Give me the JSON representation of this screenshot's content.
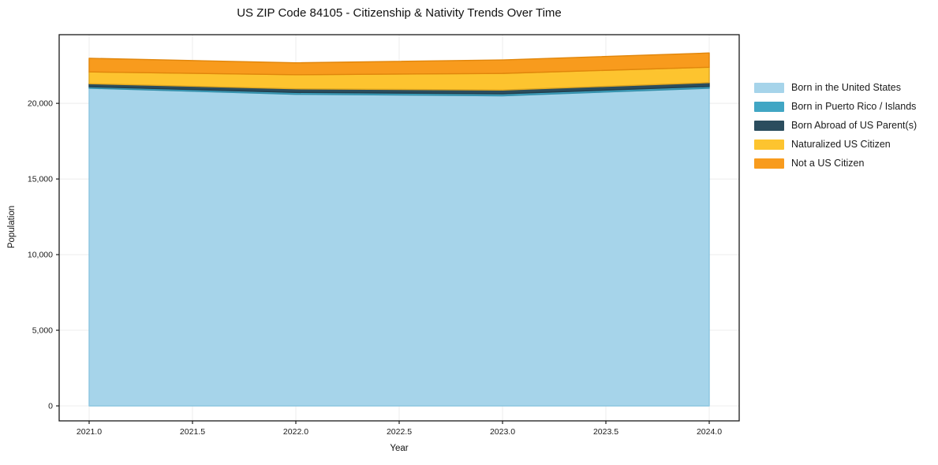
{
  "title": "US ZIP Code 84105 - Citizenship & Nativity Trends Over Time",
  "chart_data": {
    "type": "area",
    "stacked": true,
    "title": "US ZIP Code 84105 - Citizenship & Nativity Trends Over Time",
    "xlabel": "Year",
    "ylabel": "Population",
    "x": [
      2021,
      2022,
      2023,
      2024
    ],
    "series": [
      {
        "name": "Born in the United States",
        "values": [
          21000,
          20600,
          20500,
          21000
        ],
        "color": "#A6D4EA",
        "edge": "#8CC6E0"
      },
      {
        "name": "Born in Puerto Rico / Islands",
        "values": [
          100,
          120,
          130,
          120
        ],
        "color": "#41A6C4",
        "edge": "#348EA9"
      },
      {
        "name": "Born Abroad of US Parent(s)",
        "values": [
          200,
          240,
          250,
          250
        ],
        "color": "#2B4D5E",
        "edge": "#223E4C"
      },
      {
        "name": "Naturalized US Citizen",
        "values": [
          780,
          930,
          1100,
          1020
        ],
        "color": "#FDC42F",
        "edge": "#DFA620"
      },
      {
        "name": "Not a US Citizen",
        "values": [
          900,
          790,
          890,
          940
        ],
        "color": "#F89B1D",
        "edge": "#E1860B"
      }
    ],
    "x_tick_values": [
      2021.0,
      2021.5,
      2022.0,
      2022.5,
      2023.0,
      2023.5,
      2024.0
    ],
    "x_tick_labels": [
      "2021.0",
      "2021.5",
      "2022.0",
      "2022.5",
      "2023.0",
      "2023.5",
      "2024.0"
    ],
    "y_tick_values": [
      0,
      5000,
      10000,
      15000,
      20000
    ],
    "y_tick_labels": [
      "0",
      "5,000",
      "10,000",
      "15,000",
      "20,000"
    ],
    "x_range": [
      2020.855,
      2024.145
    ],
    "y_range": [
      -990,
      24540
    ],
    "grid": true,
    "grid_color": "#ececec",
    "frame_color": "#1a1a1a",
    "legend_position": "right"
  }
}
